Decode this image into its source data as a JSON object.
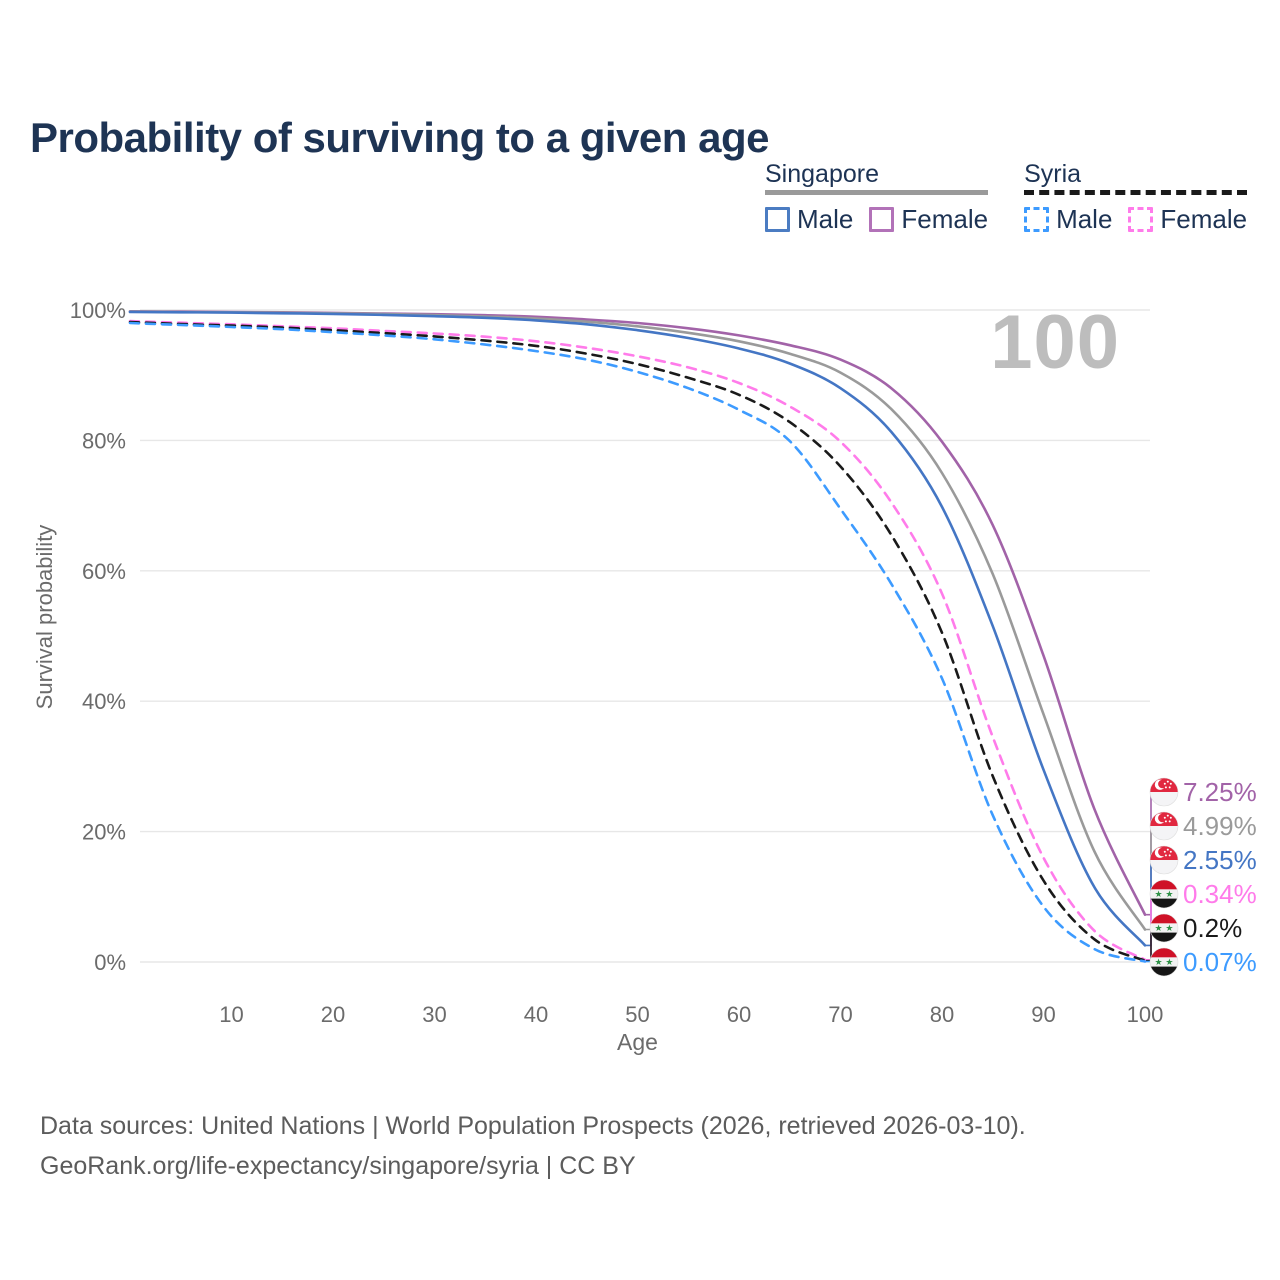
{
  "title": "Probability of surviving to a given age",
  "watermark": "100",
  "legend": {
    "groups": [
      {
        "name": "Singapore",
        "underline_style": "solid",
        "underline_color": "#9a9a9a",
        "items": [
          {
            "label": "Male",
            "color": "#4b7cc2",
            "dash": false
          },
          {
            "label": "Female",
            "color": "#b272b8",
            "dash": false
          }
        ]
      },
      {
        "name": "Syria",
        "underline_style": "dashed",
        "underline_color": "#1a1a1a",
        "items": [
          {
            "label": "Male",
            "color": "#3d9bff",
            "dash": true
          },
          {
            "label": "Female",
            "color": "#ff7bea",
            "dash": true
          }
        ]
      }
    ]
  },
  "chart_data": {
    "type": "line",
    "title": "Probability of surviving to a given age",
    "xlabel": "Age",
    "ylabel": "Survival probability",
    "xlim": [
      0,
      100
    ],
    "ylim": [
      0,
      100
    ],
    "grid": "horizontal",
    "legend_position": "top-right",
    "x_ticks": [
      10,
      20,
      30,
      40,
      50,
      60,
      70,
      80,
      90,
      100
    ],
    "y_ticks": [
      {
        "value": 0,
        "label": "0%"
      },
      {
        "value": 20,
        "label": "20%"
      },
      {
        "value": 40,
        "label": "40%"
      },
      {
        "value": 60,
        "label": "60%"
      },
      {
        "value": 80,
        "label": "80%"
      },
      {
        "value": 100,
        "label": "100%"
      }
    ],
    "annotation": "100",
    "series": [
      {
        "id": "singapore-female",
        "country": "Singapore",
        "label": "Female",
        "style": "solid",
        "color": "#a263a8",
        "flag": "singapore",
        "end_label": "7.25%",
        "points": [
          [
            0,
            99.8
          ],
          [
            5,
            99.75
          ],
          [
            10,
            99.7
          ],
          [
            15,
            99.65
          ],
          [
            20,
            99.55
          ],
          [
            25,
            99.45
          ],
          [
            30,
            99.35
          ],
          [
            35,
            99.2
          ],
          [
            40,
            98.95
          ],
          [
            45,
            98.55
          ],
          [
            50,
            98.0
          ],
          [
            55,
            97.2
          ],
          [
            60,
            96.1
          ],
          [
            65,
            94.6
          ],
          [
            70,
            92.4
          ],
          [
            75,
            88.0
          ],
          [
            80,
            79.8
          ],
          [
            85,
            67.0
          ],
          [
            90,
            47.0
          ],
          [
            95,
            23.5
          ],
          [
            100,
            7.25
          ]
        ]
      },
      {
        "id": "singapore-all",
        "country": "Singapore",
        "label": "Singapore (all)",
        "style": "solid",
        "color": "#9a9a9a",
        "flag": "singapore",
        "end_label": "4.99%",
        "points": [
          [
            0,
            99.75
          ],
          [
            5,
            99.7
          ],
          [
            10,
            99.65
          ],
          [
            15,
            99.58
          ],
          [
            20,
            99.5
          ],
          [
            25,
            99.38
          ],
          [
            30,
            99.22
          ],
          [
            35,
            99.0
          ],
          [
            40,
            98.7
          ],
          [
            45,
            98.2
          ],
          [
            50,
            97.5
          ],
          [
            55,
            96.5
          ],
          [
            60,
            95.2
          ],
          [
            65,
            93.3
          ],
          [
            70,
            90.4
          ],
          [
            75,
            84.8
          ],
          [
            80,
            75.0
          ],
          [
            85,
            59.5
          ],
          [
            90,
            38.0
          ],
          [
            95,
            17.0
          ],
          [
            100,
            4.99
          ]
        ]
      },
      {
        "id": "singapore-male",
        "country": "Singapore",
        "label": "Male",
        "style": "solid",
        "color": "#4476c4",
        "flag": "singapore",
        "end_label": "2.55%",
        "points": [
          [
            0,
            99.7
          ],
          [
            5,
            99.65
          ],
          [
            10,
            99.6
          ],
          [
            15,
            99.5
          ],
          [
            20,
            99.4
          ],
          [
            25,
            99.25
          ],
          [
            30,
            99.05
          ],
          [
            35,
            98.8
          ],
          [
            40,
            98.4
          ],
          [
            45,
            97.8
          ],
          [
            50,
            96.9
          ],
          [
            55,
            95.7
          ],
          [
            60,
            94.1
          ],
          [
            65,
            91.8
          ],
          [
            70,
            88.0
          ],
          [
            75,
            81.3
          ],
          [
            80,
            69.8
          ],
          [
            85,
            51.5
          ],
          [
            90,
            29.5
          ],
          [
            95,
            11.5
          ],
          [
            100,
            2.55
          ]
        ]
      },
      {
        "id": "syria-female",
        "country": "Syria",
        "label": "Female",
        "style": "dashed",
        "color": "#ff7bea",
        "flag": "syria",
        "end_label": "0.34%",
        "points": [
          [
            0,
            98.3
          ],
          [
            5,
            98.05
          ],
          [
            10,
            97.8
          ],
          [
            15,
            97.5
          ],
          [
            20,
            97.2
          ],
          [
            25,
            96.8
          ],
          [
            30,
            96.4
          ],
          [
            35,
            95.9
          ],
          [
            40,
            95.2
          ],
          [
            45,
            94.2
          ],
          [
            50,
            92.9
          ],
          [
            55,
            91.2
          ],
          [
            60,
            88.8
          ],
          [
            65,
            85.2
          ],
          [
            70,
            79.8
          ],
          [
            75,
            70.5
          ],
          [
            80,
            56.5
          ],
          [
            85,
            34.5
          ],
          [
            90,
            16.0
          ],
          [
            95,
            4.8
          ],
          [
            100,
            0.34
          ]
        ]
      },
      {
        "id": "syria-all",
        "country": "Syria",
        "label": "Syria (all)",
        "style": "dashed",
        "color": "#1a1a1a",
        "flag": "syria",
        "end_label": "0.2%",
        "points": [
          [
            0,
            98.15
          ],
          [
            5,
            97.85
          ],
          [
            10,
            97.6
          ],
          [
            15,
            97.3
          ],
          [
            20,
            96.9
          ],
          [
            25,
            96.45
          ],
          [
            30,
            95.95
          ],
          [
            35,
            95.3
          ],
          [
            40,
            94.5
          ],
          [
            45,
            93.3
          ],
          [
            50,
            91.7
          ],
          [
            55,
            89.6
          ],
          [
            60,
            87.0
          ],
          [
            65,
            82.8
          ],
          [
            70,
            76.0
          ],
          [
            75,
            65.5
          ],
          [
            80,
            50.5
          ],
          [
            85,
            28.5
          ],
          [
            90,
            12.5
          ],
          [
            95,
            3.5
          ],
          [
            100,
            0.2
          ]
        ]
      },
      {
        "id": "syria-male",
        "country": "Syria",
        "label": "Male",
        "style": "dashed",
        "color": "#3d9bff",
        "flag": "syria",
        "end_label": "0.07%",
        "points": [
          [
            0,
            98.0
          ],
          [
            5,
            97.7
          ],
          [
            10,
            97.4
          ],
          [
            15,
            97.05
          ],
          [
            20,
            96.6
          ],
          [
            25,
            96.1
          ],
          [
            30,
            95.5
          ],
          [
            35,
            94.7
          ],
          [
            40,
            93.7
          ],
          [
            45,
            92.4
          ],
          [
            50,
            90.5
          ],
          [
            55,
            88.0
          ],
          [
            60,
            84.7
          ],
          [
            65,
            79.9
          ],
          [
            70,
            69.5
          ],
          [
            75,
            58.0
          ],
          [
            80,
            43.5
          ],
          [
            85,
            22.5
          ],
          [
            90,
            8.5
          ],
          [
            95,
            2.0
          ],
          [
            100,
            0.07
          ]
        ]
      }
    ]
  },
  "footer": {
    "line1": "Data sources: United Nations | World Population Prospects (2026, retrieved 2026-03-10).",
    "line2": "GeoRank.org/life-expectancy/singapore/syria | CC BY"
  }
}
